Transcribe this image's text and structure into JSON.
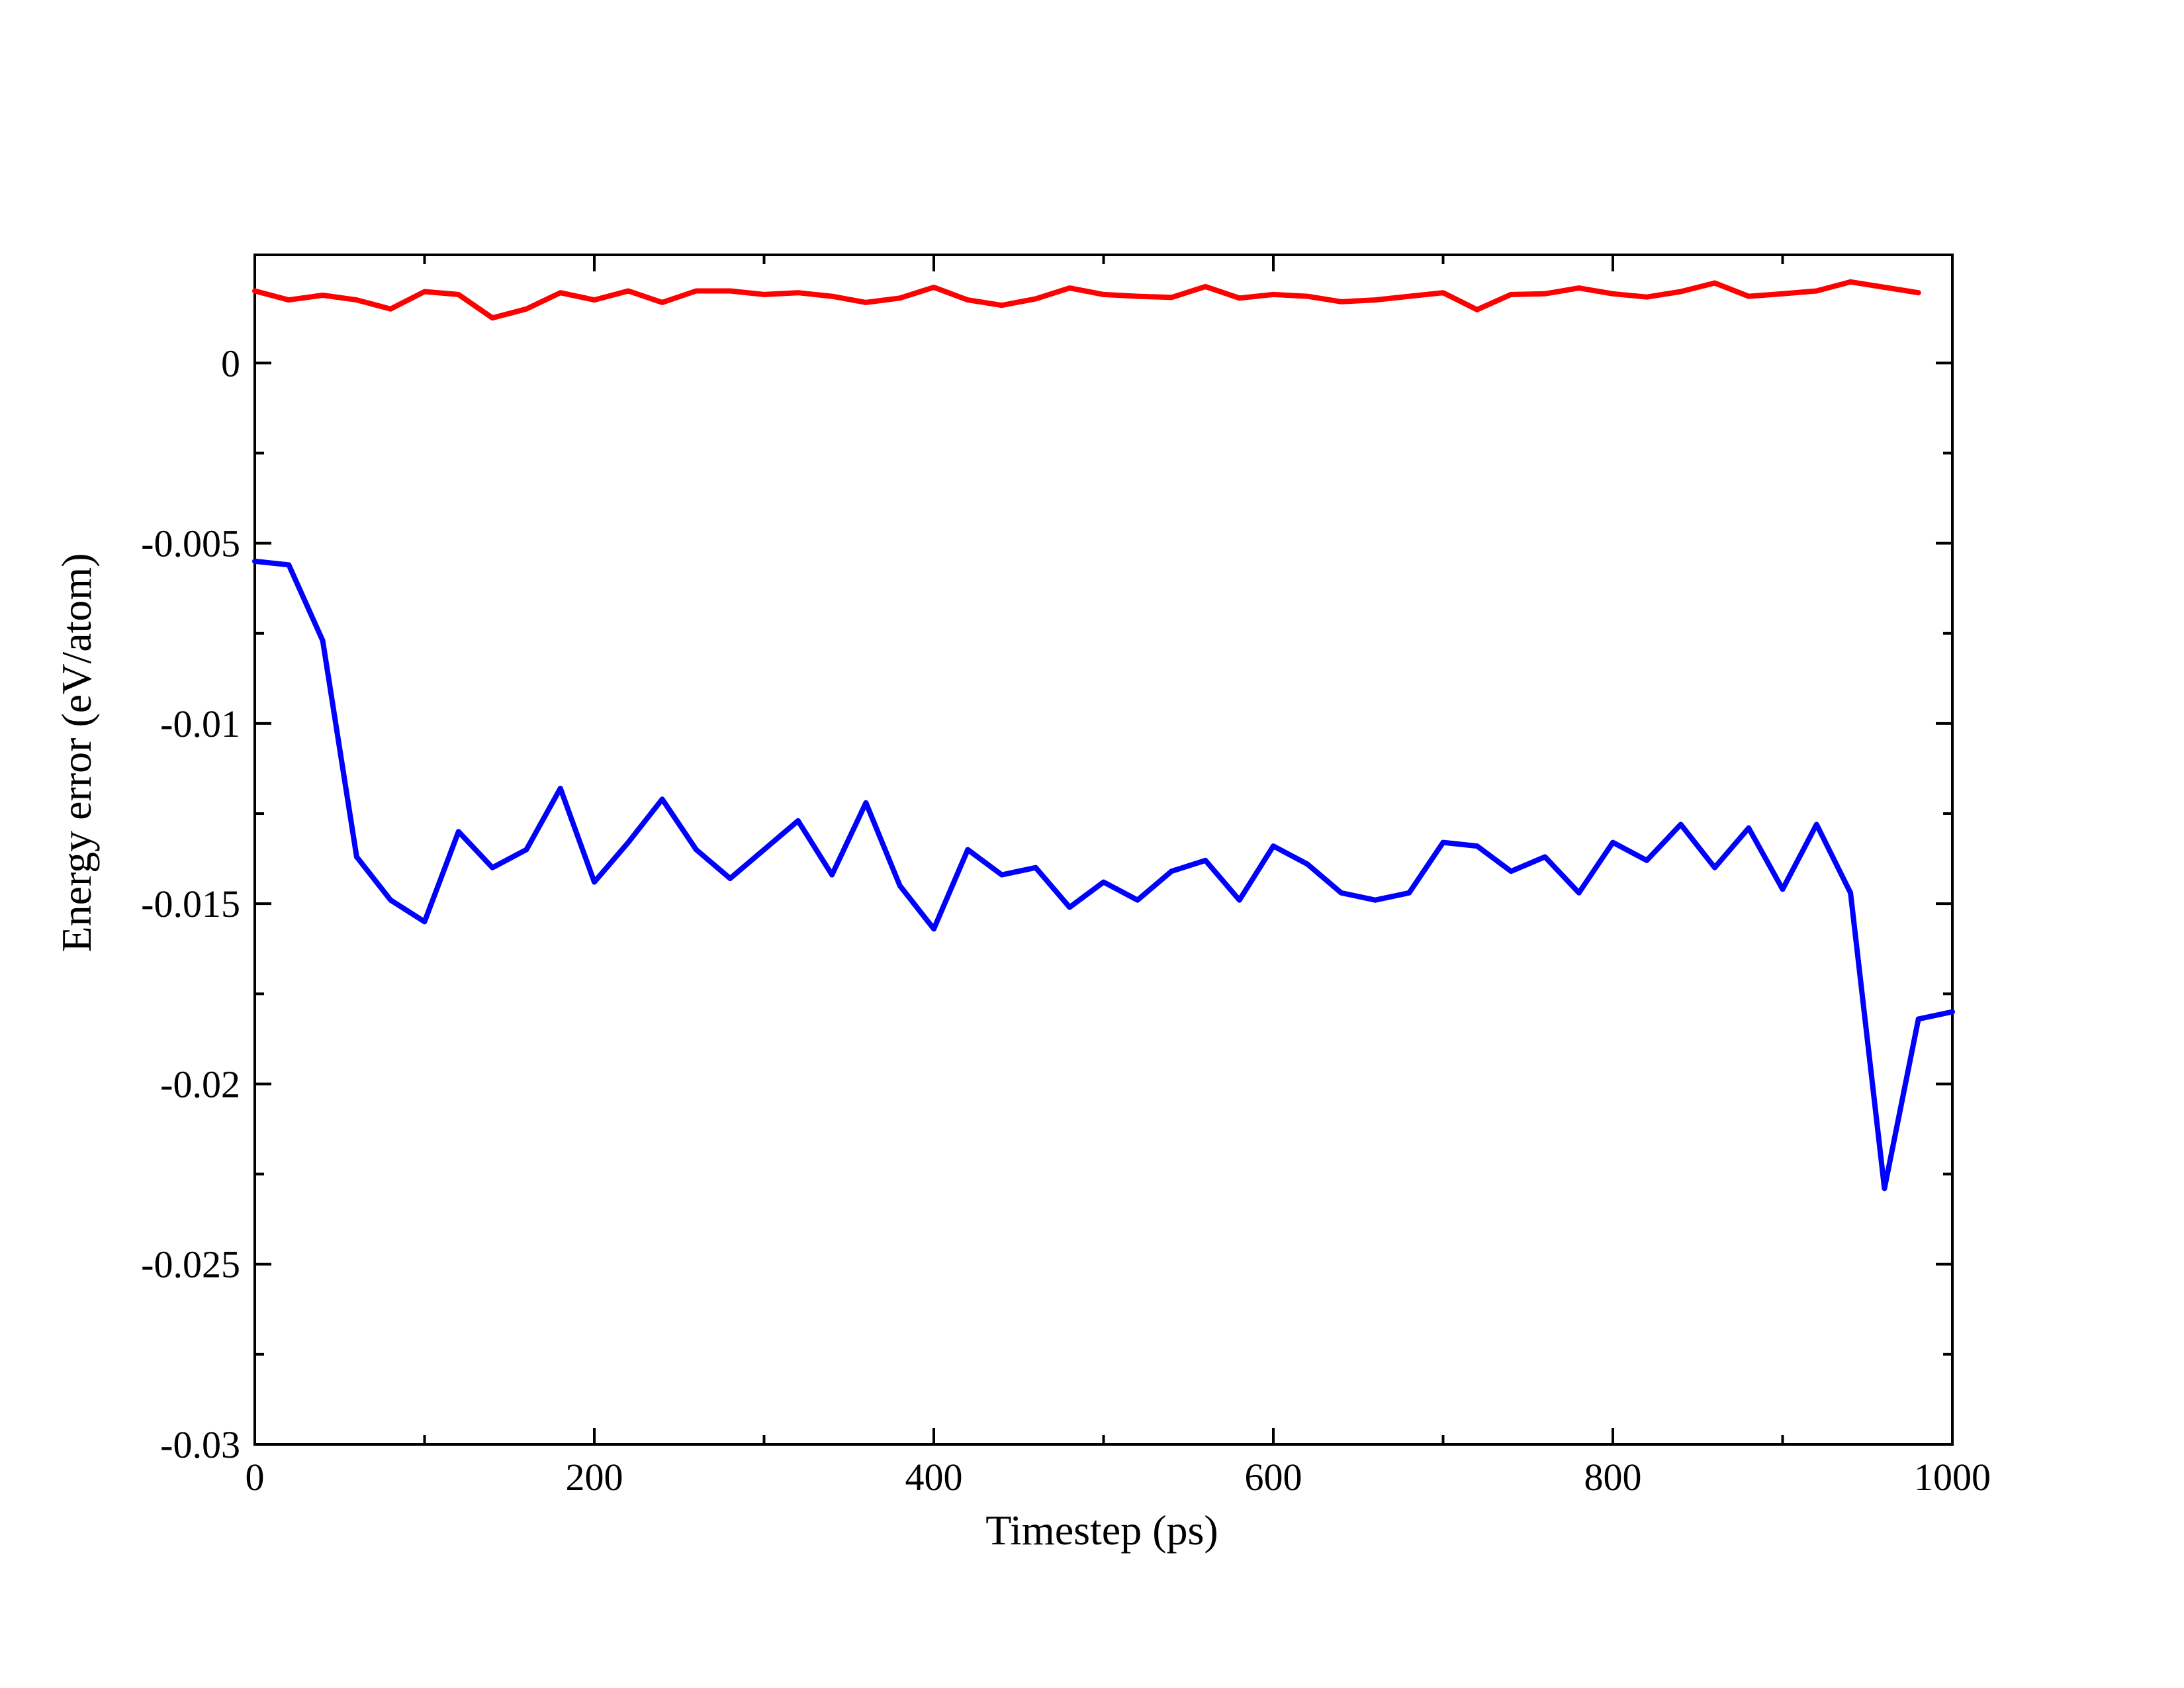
{
  "chart_data": {
    "type": "line",
    "xlabel": "Timestep (ps)",
    "ylabel": "Energy error (eV/atom)",
    "xlim": [
      0,
      1000
    ],
    "ylim": [
      -0.03,
      0.003
    ],
    "x_ticks": [
      0,
      200,
      400,
      600,
      800,
      1000
    ],
    "x_tick_labels": [
      "0",
      "200",
      "400",
      "600",
      "800",
      "1000"
    ],
    "y_ticks": [
      0,
      -0.005,
      -0.01,
      -0.015,
      -0.02,
      -0.025,
      -0.03
    ],
    "y_tick_labels": [
      "0",
      "-0.005",
      "-0.01",
      "-0.015",
      "-0.02",
      "-0.025",
      "-0.03"
    ],
    "grid": false,
    "series": [
      {
        "color": "#ff0000",
        "x": [
          0,
          20,
          40,
          60,
          80,
          100,
          120,
          140,
          160,
          180,
          200,
          220,
          240,
          260,
          280,
          300,
          320,
          340,
          360,
          380,
          400,
          420,
          440,
          460,
          480,
          500,
          520,
          540,
          560,
          580,
          600,
          620,
          640,
          660,
          680,
          700,
          720,
          740,
          760,
          780,
          800,
          820,
          840,
          860,
          880,
          900,
          920,
          940,
          960,
          980
        ],
        "y": [
          0.002,
          0.00175,
          0.00188,
          0.00175,
          0.0015,
          0.00198,
          0.0019,
          0.00125,
          0.0015,
          0.00195,
          0.00175,
          0.002,
          0.00168,
          0.002,
          0.002,
          0.0019,
          0.00195,
          0.00185,
          0.00168,
          0.0018,
          0.0021,
          0.00175,
          0.0016,
          0.00178,
          0.00208,
          0.0019,
          0.00185,
          0.00182,
          0.00212,
          0.0018,
          0.0019,
          0.00185,
          0.0017,
          0.00175,
          0.00185,
          0.00195,
          0.00148,
          0.0019,
          0.00192,
          0.00208,
          0.00192,
          0.00183,
          0.00198,
          0.00222,
          0.00185,
          0.00192,
          0.002,
          0.00225,
          0.0021,
          0.00195
        ]
      },
      {
        "color": "#0000ff",
        "x": [
          0,
          20,
          40,
          60,
          80,
          100,
          120,
          140,
          160,
          180,
          200,
          220,
          240,
          260,
          280,
          300,
          320,
          340,
          360,
          380,
          400,
          420,
          440,
          460,
          480,
          500,
          520,
          540,
          560,
          580,
          600,
          620,
          640,
          660,
          680,
          700,
          720,
          740,
          760,
          780,
          800,
          820,
          840,
          860,
          880,
          900,
          920,
          940,
          960,
          980,
          1000
        ],
        "y": [
          -0.0055,
          -0.0056,
          -0.0077,
          -0.0137,
          -0.0149,
          -0.0155,
          -0.013,
          -0.014,
          -0.0135,
          -0.0118,
          -0.0144,
          -0.0133,
          -0.0121,
          -0.0135,
          -0.0143,
          -0.0135,
          -0.0127,
          -0.0142,
          -0.0122,
          -0.0145,
          -0.0157,
          -0.0135,
          -0.0142,
          -0.014,
          -0.0151,
          -0.0144,
          -0.0149,
          -0.0141,
          -0.0138,
          -0.0149,
          -0.0134,
          -0.0139,
          -0.0147,
          -0.0149,
          -0.0147,
          -0.0133,
          -0.0134,
          -0.0141,
          -0.0137,
          -0.0147,
          -0.0133,
          -0.0138,
          -0.0128,
          -0.014,
          -0.0129,
          -0.0146,
          -0.0128,
          -0.0147,
          -0.0229,
          -0.0182,
          -0.018
        ]
      }
    ]
  }
}
